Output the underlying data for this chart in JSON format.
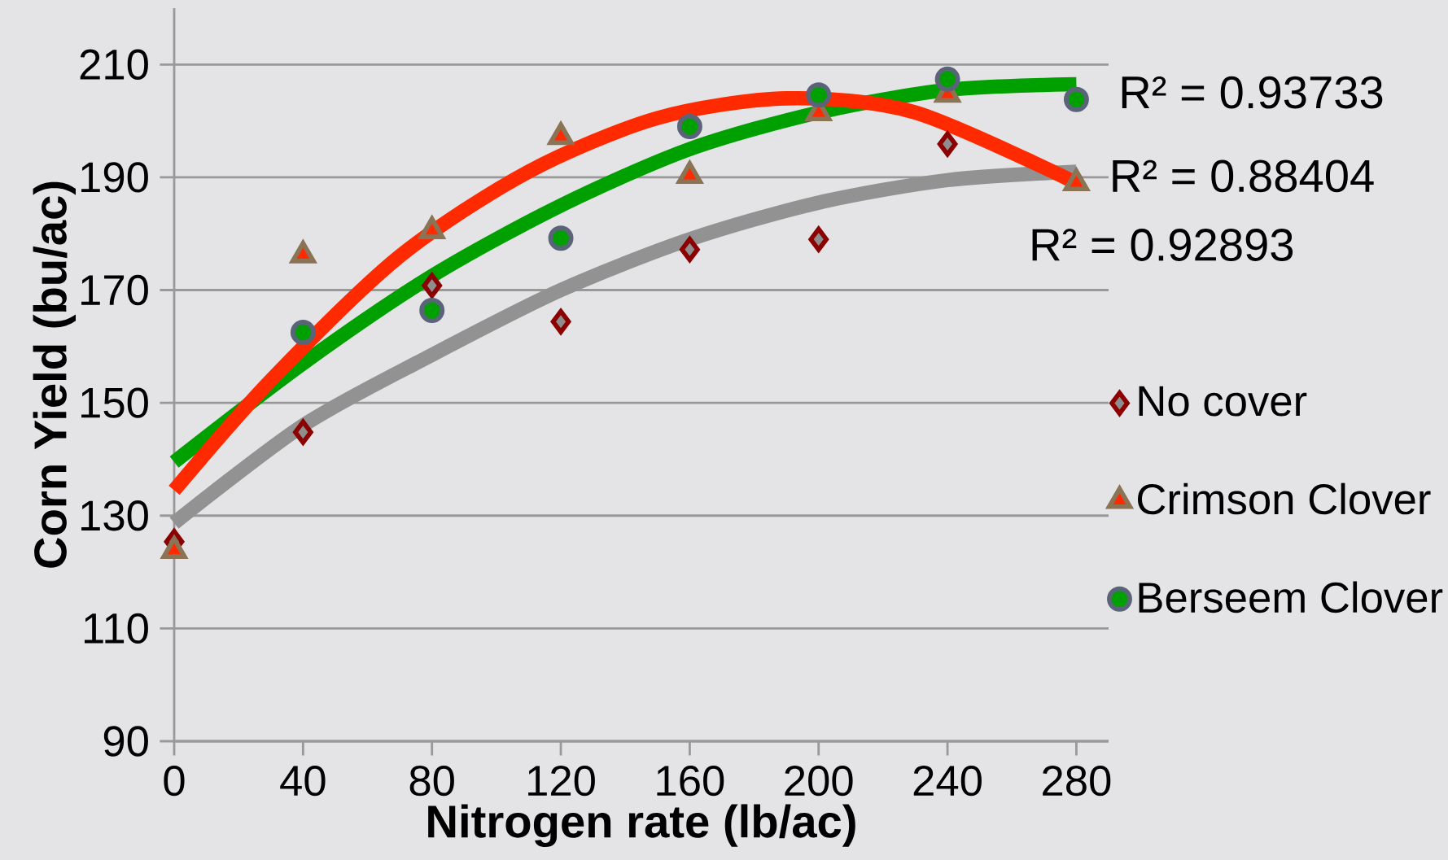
{
  "chart_data": {
    "type": "scatter",
    "xlabel": "Nitrogen rate (lb/ac)",
    "ylabel": "Corn Yield (bu/ac)",
    "x": [
      0,
      40,
      80,
      120,
      160,
      200,
      240,
      280
    ],
    "xlim": [
      0,
      290
    ],
    "ylim": [
      90,
      220
    ],
    "xticks": [
      0,
      40,
      80,
      120,
      160,
      200,
      240,
      280
    ],
    "yticks": [
      90,
      110,
      130,
      150,
      170,
      190,
      210
    ],
    "grid": "y",
    "legend": "right",
    "series": [
      {
        "name": "No cover",
        "color": "#8e8e8e",
        "marker": "diamond",
        "values": [
          125.4,
          144.8,
          170.8,
          164.4,
          177.2,
          179.0,
          195.9,
          null
        ]
      },
      {
        "name": "Crimson Clover",
        "color": "#ff2a00",
        "marker": "triangle",
        "values": [
          123.8,
          176.2,
          180.5,
          197.2,
          190.3,
          201.4,
          204.7,
          189.0
        ]
      },
      {
        "name": "Berseem Clover",
        "color": "#00a000",
        "marker": "circle",
        "values": [
          null,
          162.5,
          166.4,
          179.2,
          199.0,
          204.6,
          207.4,
          203.8
        ]
      },
      {
        "type": "line",
        "color": "#929292",
        "marker": "none",
        "values": [
          128.7,
          146.0,
          158.5,
          170.0,
          179.0,
          185.5,
          189.5,
          191.0
        ]
      },
      {
        "type": "line",
        "color": "#ff2a00",
        "marker": "none",
        "x": [
          0,
          30,
          70,
          110,
          150,
          190,
          230,
          280
        ],
        "values": [
          134.5,
          154.0,
          176.0,
          191.0,
          200.5,
          204.0,
          201.5,
          189.0
        ]
      },
      {
        "type": "line",
        "color": "#00a000",
        "marker": "none",
        "values": [
          139.5,
          157.0,
          172.5,
          185.0,
          195.0,
          201.5,
          205.5,
          206.5
        ]
      }
    ],
    "annotations": [
      "R² = 0.93733",
      "R² = 0.88404",
      "R² = 0.92893"
    ]
  }
}
